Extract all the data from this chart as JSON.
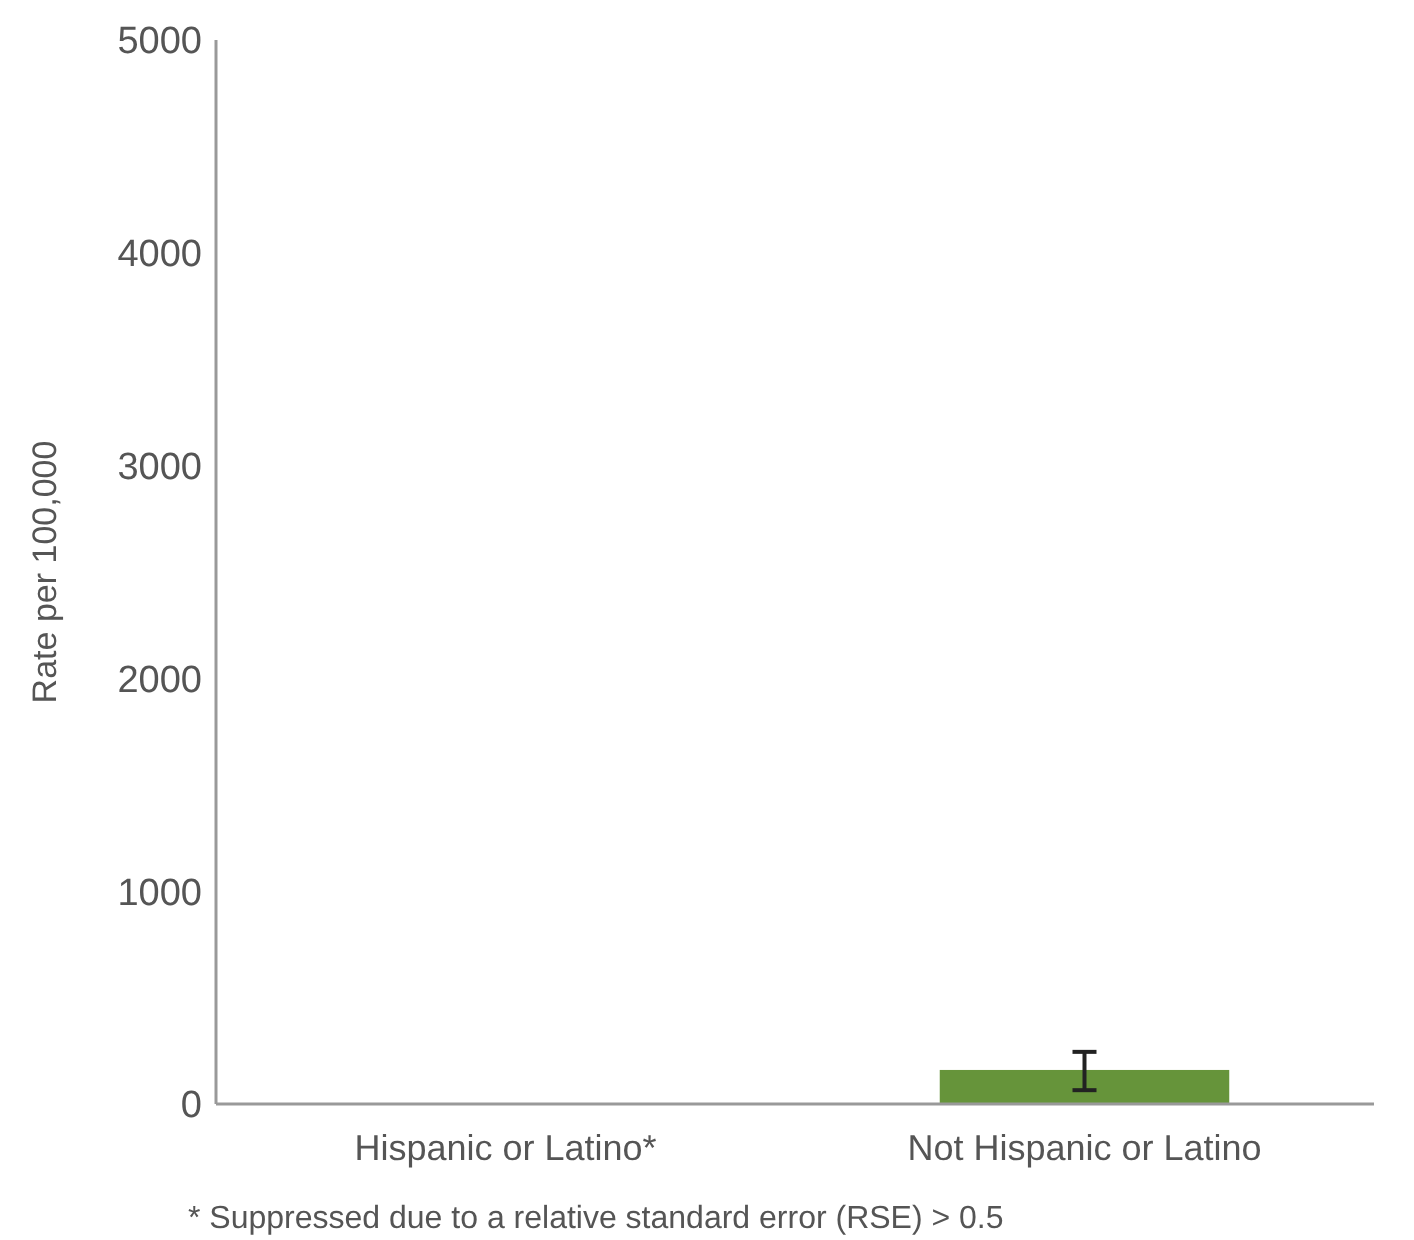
{
  "chart_data": {
    "type": "bar",
    "ylabel": "Rate per 100,000",
    "categories": [
      "Hispanic or Latino*",
      "Not Hispanic or Latino"
    ],
    "values": [
      null,
      160
    ],
    "errors": [
      null,
      [
        65,
        245
      ]
    ],
    "color": "#66943a",
    "ylim": [
      0,
      5000
    ],
    "yticks": [
      0,
      1000,
      2000,
      3000,
      4000,
      5000
    ],
    "grid": false,
    "annotations": [
      "* Suppressed due to a relative standard error (RSE) > 0.5"
    ]
  }
}
